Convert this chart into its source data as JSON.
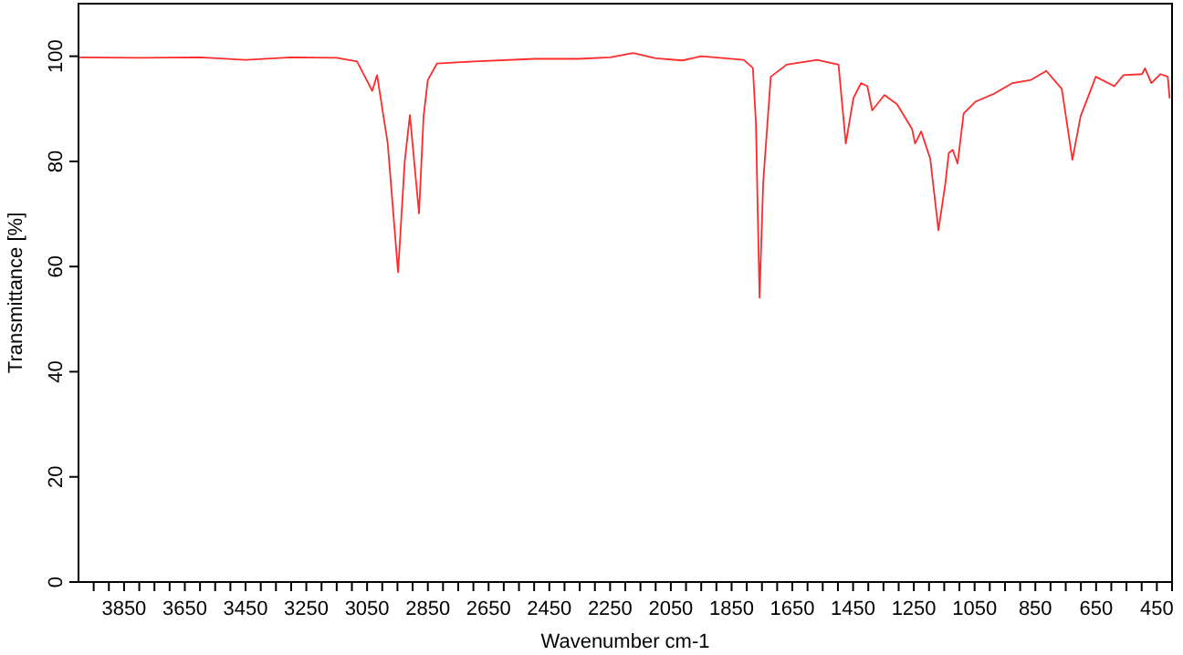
{
  "chart_data": {
    "type": "line",
    "xlabel": "Wavenumber cm-1",
    "ylabel": "Transmittance [%]",
    "xlim": [
      4000,
      400
    ],
    "ylim": [
      0,
      110
    ],
    "xticks": [
      {
        "value": 3950,
        "label": null
      },
      {
        "value": 3900,
        "label": null
      },
      {
        "value": 3850,
        "label": "3850"
      },
      {
        "value": 3800,
        "label": null
      },
      {
        "value": 3750,
        "label": null
      },
      {
        "value": 3700,
        "label": null
      },
      {
        "value": 3650,
        "label": "3650"
      },
      {
        "value": 3600,
        "label": null
      },
      {
        "value": 3550,
        "label": null
      },
      {
        "value": 3500,
        "label": null
      },
      {
        "value": 3450,
        "label": "3450"
      },
      {
        "value": 3400,
        "label": null
      },
      {
        "value": 3350,
        "label": null
      },
      {
        "value": 3300,
        "label": null
      },
      {
        "value": 3250,
        "label": "3250"
      },
      {
        "value": 3200,
        "label": null
      },
      {
        "value": 3150,
        "label": null
      },
      {
        "value": 3100,
        "label": null
      },
      {
        "value": 3050,
        "label": "3050"
      },
      {
        "value": 3000,
        "label": null
      },
      {
        "value": 2950,
        "label": null
      },
      {
        "value": 2900,
        "label": null
      },
      {
        "value": 2850,
        "label": "2850"
      },
      {
        "value": 2800,
        "label": null
      },
      {
        "value": 2750,
        "label": null
      },
      {
        "value": 2700,
        "label": null
      },
      {
        "value": 2650,
        "label": "2650"
      },
      {
        "value": 2600,
        "label": null
      },
      {
        "value": 2550,
        "label": null
      },
      {
        "value": 2500,
        "label": null
      },
      {
        "value": 2450,
        "label": "2450"
      },
      {
        "value": 2400,
        "label": null
      },
      {
        "value": 2350,
        "label": null
      },
      {
        "value": 2300,
        "label": null
      },
      {
        "value": 2250,
        "label": "2250"
      },
      {
        "value": 2200,
        "label": null
      },
      {
        "value": 2150,
        "label": null
      },
      {
        "value": 2100,
        "label": null
      },
      {
        "value": 2050,
        "label": "2050"
      },
      {
        "value": 2000,
        "label": null
      },
      {
        "value": 1950,
        "label": null
      },
      {
        "value": 1900,
        "label": null
      },
      {
        "value": 1850,
        "label": "1850"
      },
      {
        "value": 1800,
        "label": null
      },
      {
        "value": 1750,
        "label": null
      },
      {
        "value": 1700,
        "label": null
      },
      {
        "value": 1650,
        "label": "1650"
      },
      {
        "value": 1600,
        "label": null
      },
      {
        "value": 1550,
        "label": null
      },
      {
        "value": 1500,
        "label": null
      },
      {
        "value": 1450,
        "label": "1450"
      },
      {
        "value": 1400,
        "label": null
      },
      {
        "value": 1350,
        "label": null
      },
      {
        "value": 1300,
        "label": null
      },
      {
        "value": 1250,
        "label": "1250"
      },
      {
        "value": 1200,
        "label": null
      },
      {
        "value": 1150,
        "label": null
      },
      {
        "value": 1100,
        "label": null
      },
      {
        "value": 1050,
        "label": "1050"
      },
      {
        "value": 1000,
        "label": null
      },
      {
        "value": 950,
        "label": null
      },
      {
        "value": 900,
        "label": null
      },
      {
        "value": 850,
        "label": "850"
      },
      {
        "value": 800,
        "label": null
      },
      {
        "value": 750,
        "label": null
      },
      {
        "value": 700,
        "label": null
      },
      {
        "value": 650,
        "label": "650"
      },
      {
        "value": 600,
        "label": null
      },
      {
        "value": 550,
        "label": null
      },
      {
        "value": 500,
        "label": null
      },
      {
        "value": 450,
        "label": "450"
      },
      {
        "value": 400,
        "label": null
      }
    ],
    "yticks": [
      0,
      20,
      40,
      60,
      80,
      100
    ],
    "grid": false,
    "marker": "none",
    "line_style": "solid",
    "series": [
      {
        "color": "#ff2a2a",
        "x": [
          4000,
          3800,
          3600,
          3450,
          3300,
          3150,
          3083,
          3033,
          3017,
          2982,
          2948,
          2926,
          2909,
          2879,
          2864,
          2850,
          2820,
          2700,
          2500,
          2356,
          2250,
          2174,
          2100,
          2012,
          1950,
          1810,
          1780,
          1770,
          1758,
          1746,
          1721,
          1669,
          1569,
          1498,
          1474,
          1449,
          1424,
          1403,
          1387,
          1347,
          1306,
          1256,
          1246,
          1226,
          1196,
          1169,
          1146,
          1135,
          1122,
          1106,
          1086,
          1046,
          985,
          925,
          864,
          814,
          763,
          728,
          701,
          651,
          590,
          560,
          499,
          489,
          468,
          438,
          414,
          408
        ],
        "values": [
          99.8,
          99.7,
          99.8,
          99.3,
          99.8,
          99.7,
          99,
          93.4,
          96.4,
          83.4,
          58.9,
          80,
          88.8,
          70.1,
          88.6,
          95.5,
          98.6,
          99,
          99.5,
          99.5,
          99.8,
          100.6,
          99.6,
          99.2,
          100,
          99.3,
          97.8,
          87.4,
          54.1,
          75.9,
          96.1,
          98.4,
          99.3,
          98.4,
          83.4,
          92,
          94.9,
          94.3,
          89.7,
          92.6,
          90.9,
          86.2,
          83.4,
          85.7,
          80.5,
          66.9,
          75.9,
          81.6,
          82.2,
          79.6,
          89.1,
          91.4,
          92.9,
          94.9,
          95.5,
          97.2,
          93.8,
          80.3,
          88.6,
          96.1,
          94.3,
          96.4,
          96.6,
          97.7,
          94.9,
          96.6,
          96.1,
          92
        ]
      }
    ]
  }
}
